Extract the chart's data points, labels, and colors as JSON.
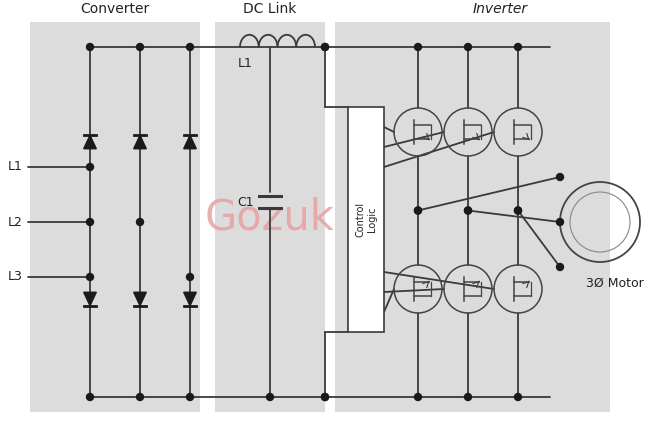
{
  "bg_color": "#ffffff",
  "panel_color": "#dcdcdc",
  "converter_label": "Converter",
  "dclink_label": "DC Link",
  "inverter_label": "Inverter",
  "motor_label": "3Ø Motor",
  "gozuk_text": "Gozuk",
  "gozuk_color": "#e8a0a0",
  "L1_label": "L1",
  "L2_label": "L2",
  "L3_label": "L3",
  "C1_label": "C1",
  "L1_comp_label": "L1",
  "line_color": "#3a3a3a",
  "dot_color": "#1a1a1a",
  "line_width": 1.3
}
